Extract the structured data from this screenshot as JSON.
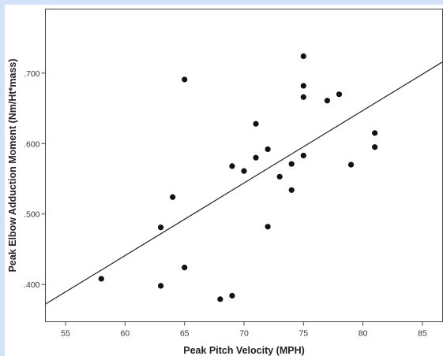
{
  "chart_data": {
    "type": "scatter",
    "xlabel": "Peak Pitch Velocity (MPH)",
    "ylabel": "Peak Elbow Adduction Moment (Nm/Ht*mass)",
    "xlim": [
      53.3,
      86.7
    ],
    "ylim": [
      0.347,
      0.791
    ],
    "x_ticks": [
      55,
      60,
      65,
      70,
      75,
      80,
      85
    ],
    "x_tick_labels": [
      "55",
      "60",
      "65",
      "70",
      "75",
      "80",
      "85"
    ],
    "y_ticks": [
      0.4,
      0.5,
      0.6,
      0.7
    ],
    "y_tick_labels": [
      ".400",
      ".500",
      ".600",
      ".700"
    ],
    "grid": false,
    "legend": "none",
    "points": [
      {
        "x": 58,
        "y": 0.408
      },
      {
        "x": 63,
        "y": 0.481
      },
      {
        "x": 63,
        "y": 0.398
      },
      {
        "x": 64,
        "y": 0.524
      },
      {
        "x": 65,
        "y": 0.691
      },
      {
        "x": 65,
        "y": 0.424
      },
      {
        "x": 68,
        "y": 0.379
      },
      {
        "x": 69,
        "y": 0.568
      },
      {
        "x": 69,
        "y": 0.384
      },
      {
        "x": 70,
        "y": 0.561
      },
      {
        "x": 71,
        "y": 0.628
      },
      {
        "x": 71,
        "y": 0.58
      },
      {
        "x": 72,
        "y": 0.592
      },
      {
        "x": 72,
        "y": 0.482
      },
      {
        "x": 73,
        "y": 0.553
      },
      {
        "x": 74,
        "y": 0.571
      },
      {
        "x": 74,
        "y": 0.534
      },
      {
        "x": 75,
        "y": 0.724
      },
      {
        "x": 75,
        "y": 0.682
      },
      {
        "x": 75,
        "y": 0.666
      },
      {
        "x": 75,
        "y": 0.583
      },
      {
        "x": 77,
        "y": 0.661
      },
      {
        "x": 78,
        "y": 0.67
      },
      {
        "x": 79,
        "y": 0.57
      },
      {
        "x": 81,
        "y": 0.615
      },
      {
        "x": 81,
        "y": 0.595
      }
    ],
    "fit_line": {
      "x": [
        53.3,
        86.7
      ],
      "y": [
        0.372,
        0.716
      ]
    },
    "colors": {
      "points": "#111111",
      "line": "#222222",
      "background": "#ffffff",
      "outer": "#d4e3f7"
    }
  }
}
